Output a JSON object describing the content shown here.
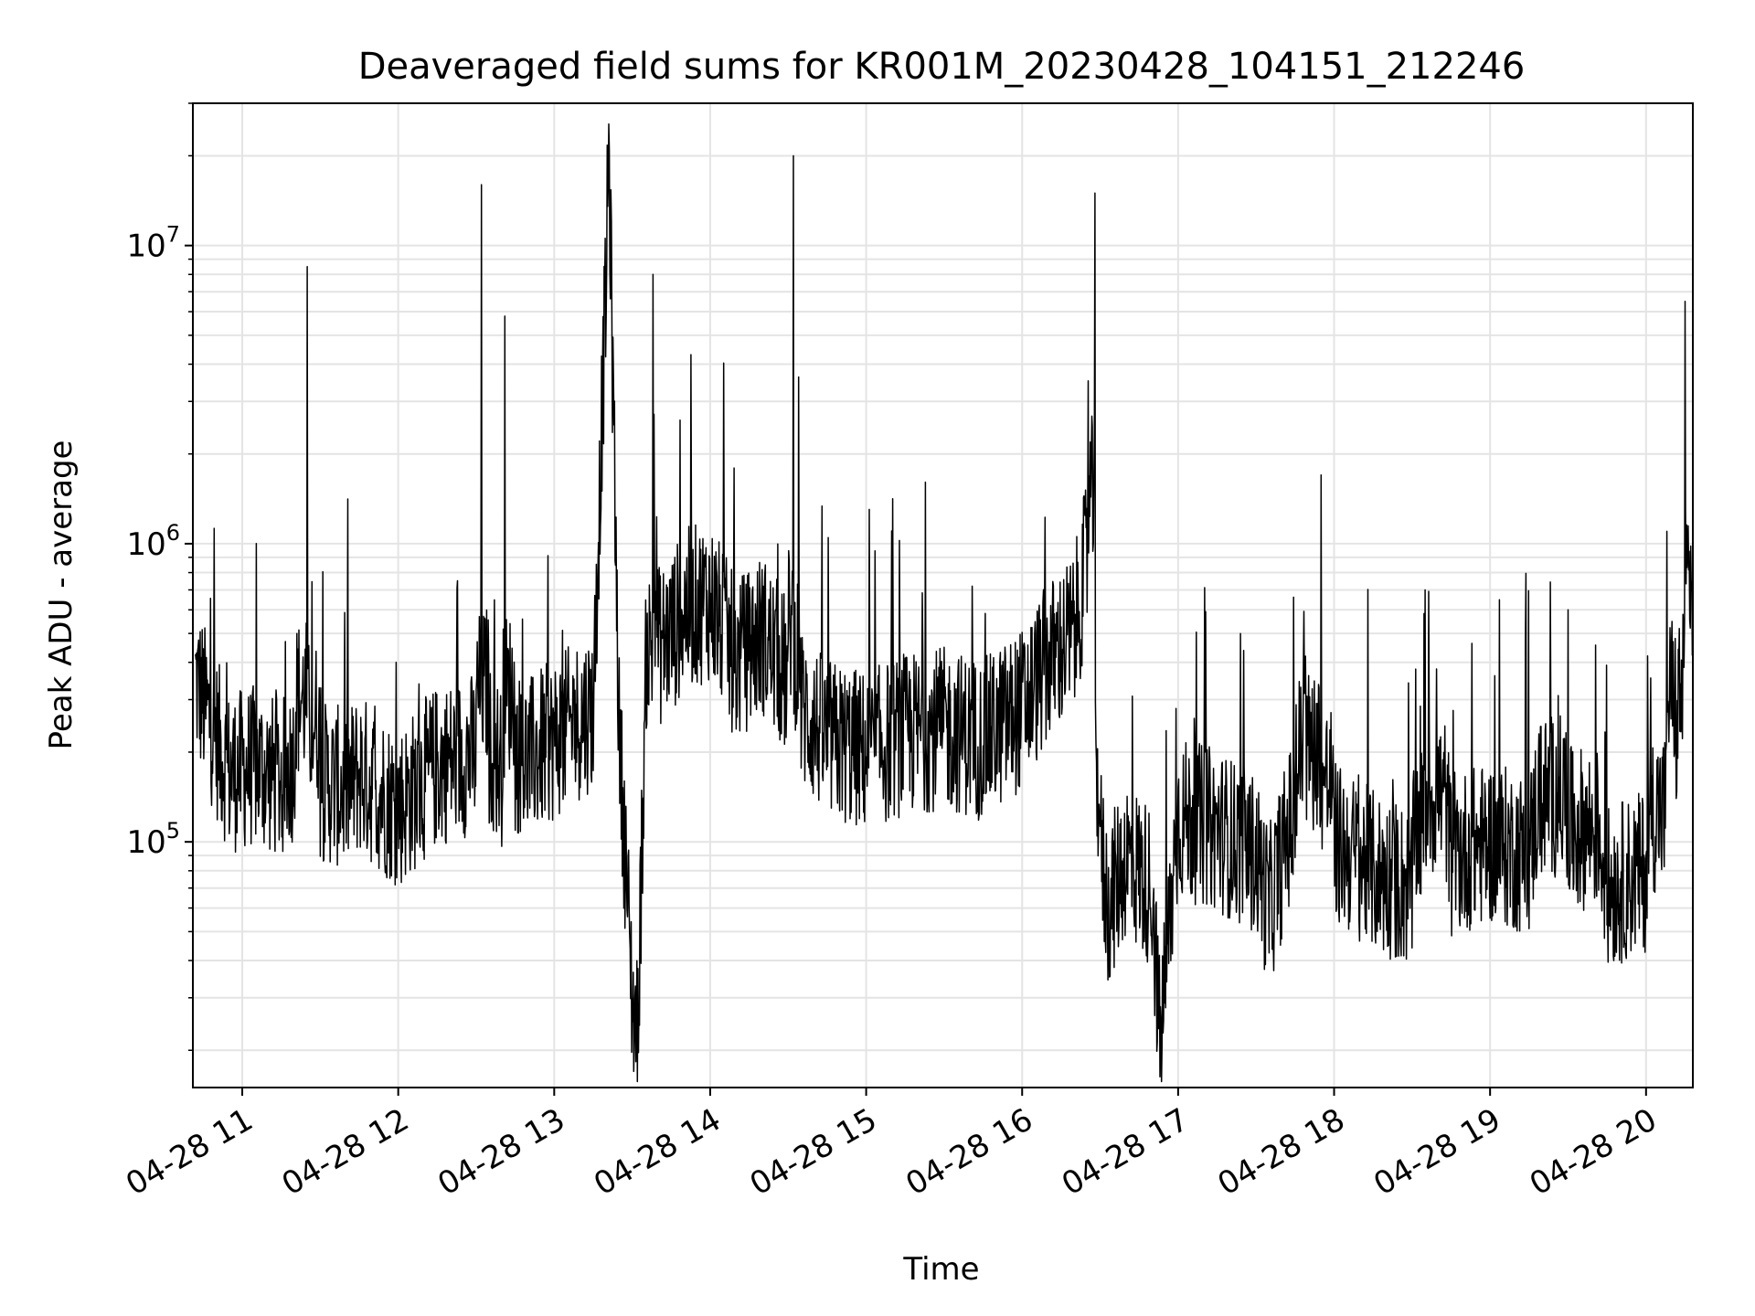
{
  "chart_data": {
    "type": "line",
    "title": "Deaveraged field sums for KR001M_20230428_104151_212246",
    "xlabel": "Time",
    "ylabel": "Peak ADU - average",
    "x_range": [
      "2023-04-28 10:41",
      "2023-04-28 20:18"
    ],
    "x_ticks": [
      "04-28 11",
      "04-28 12",
      "04-28 13",
      "04-28 14",
      "04-28 15",
      "04-28 16",
      "04-28 17",
      "04-28 18",
      "04-28 19",
      "04-28 20"
    ],
    "y_scale": "log",
    "y_range": [
      15000,
      30000000
    ],
    "y_ticks": [
      {
        "base": "10",
        "exp": "5",
        "value": 100000
      },
      {
        "base": "10",
        "exp": "6",
        "value": 1000000
      },
      {
        "base": "10",
        "exp": "7",
        "value": 10000000
      }
    ],
    "grid": true,
    "line_color": "#000000",
    "series": [
      {
        "x": [
          "2023-04-28 10:42",
          "2023-04-28 10:55",
          "2023-04-28 11:05",
          "2023-04-28 11:15",
          "2023-04-28 11:20",
          "2023-04-28 11:25",
          "2023-04-28 11:30",
          "2023-04-28 11:40",
          "2023-04-28 11:45",
          "2023-04-28 12:00",
          "2023-04-28 12:15",
          "2023-04-28 12:30",
          "2023-04-28 12:32",
          "2023-04-28 12:35",
          "2023-04-28 12:40",
          "2023-04-28 12:41",
          "2023-04-28 12:45",
          "2023-04-28 12:50",
          "2023-04-28 13:00",
          "2023-04-28 13:10",
          "2023-04-28 13:15",
          "2023-04-28 13:20",
          "2023-04-28 13:21",
          "2023-04-28 13:25",
          "2023-04-28 13:28",
          "2023-04-28 13:30",
          "2023-04-28 13:32",
          "2023-04-28 13:35",
          "2023-04-28 13:38",
          "2023-04-28 13:40",
          "2023-04-28 13:45",
          "2023-04-28 13:50",
          "2023-04-28 14:00",
          "2023-04-28 14:10",
          "2023-04-28 14:20",
          "2023-04-28 14:30",
          "2023-04-28 14:32",
          "2023-04-28 14:35",
          "2023-04-28 14:45",
          "2023-04-28 15:00",
          "2023-04-28 15:15",
          "2023-04-28 15:30",
          "2023-04-28 15:45",
          "2023-04-28 16:00",
          "2023-04-28 16:10",
          "2023-04-28 16:20",
          "2023-04-28 16:25",
          "2023-04-28 16:28",
          "2023-04-28 16:30",
          "2023-04-28 16:33",
          "2023-04-28 16:40",
          "2023-04-28 16:50",
          "2023-04-28 16:53",
          "2023-04-28 17:00",
          "2023-04-28 17:15",
          "2023-04-28 17:30",
          "2023-04-28 17:35",
          "2023-04-28 17:45",
          "2023-04-28 17:55",
          "2023-04-28 18:00",
          "2023-04-28 18:15",
          "2023-04-28 18:30",
          "2023-04-28 18:35",
          "2023-04-28 18:45",
          "2023-04-28 19:00",
          "2023-04-28 19:15",
          "2023-04-28 19:30",
          "2023-04-28 19:45",
          "2023-04-28 20:00",
          "2023-04-28 20:08",
          "2023-04-28 20:12",
          "2023-04-28 20:15",
          "2023-04-28 20:18"
        ],
        "y": [
          350000,
          170000,
          180000,
          160000,
          190000,
          8500000,
          160000,
          150000,
          170000,
          130000,
          180000,
          200000,
          16000000,
          210000,
          180000,
          5800000,
          200000,
          190000,
          220000,
          260000,
          280000,
          7800000,
          21000000,
          230000,
          70000,
          30000,
          22000,
          280000,
          8000000,
          450000,
          500000,
          600000,
          650000,
          400000,
          500000,
          350000,
          20000000,
          280000,
          220000,
          200000,
          230000,
          240000,
          220000,
          280000,
          400000,
          500000,
          900000,
          15000000,
          100000,
          60000,
          90000,
          70000,
          21000,
          120000,
          110000,
          90000,
          60000,
          130000,
          1700000,
          100000,
          80000,
          70000,
          700000,
          90000,
          100000,
          90000,
          600000,
          70000,
          80000,
          1100000,
          200000,
          6500000,
          500000
        ]
      }
    ]
  }
}
